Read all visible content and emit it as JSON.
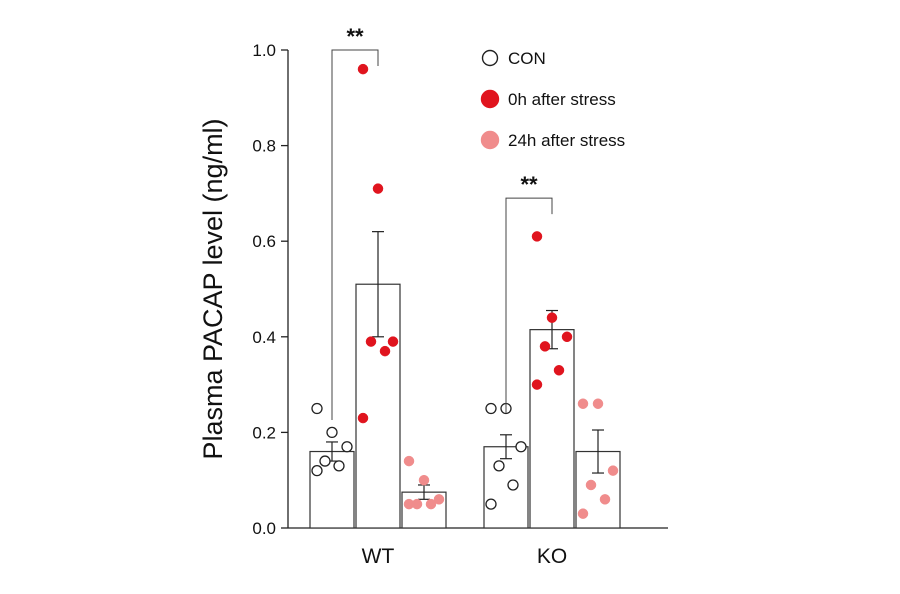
{
  "chart_data": {
    "type": "bar",
    "title": "",
    "xlabel": "",
    "ylabel": "Plasma PACAP level (ng/ml)",
    "ylim": [
      0,
      1.0
    ],
    "yticks": [
      "0.0",
      "0.2",
      "0.4",
      "0.6",
      "0.8",
      "1.0"
    ],
    "categories": [
      "WT",
      "KO"
    ],
    "series": [
      {
        "name": "CON",
        "color": "#ffffff",
        "stroke": "#222222",
        "values": [
          0.16,
          0.17
        ],
        "errors": [
          0.02,
          0.025
        ],
        "points": [
          [
            0.25,
            0.2,
            0.17,
            0.14,
            0.13,
            0.12
          ],
          [
            0.25,
            0.25,
            0.17,
            0.13,
            0.09,
            0.05
          ]
        ]
      },
      {
        "name": "0h after stress",
        "color": "#e0141e",
        "values": [
          0.51,
          0.415
        ],
        "errors": [
          0.11,
          0.04
        ],
        "points": [
          [
            0.96,
            0.71,
            0.39,
            0.39,
            0.37,
            0.23
          ],
          [
            0.61,
            0.44,
            0.4,
            0.38,
            0.33,
            0.3
          ]
        ]
      },
      {
        "name": "24h after stress",
        "color": "#f08c8c",
        "values": [
          0.075,
          0.16
        ],
        "errors": [
          0.015,
          0.045
        ],
        "points": [
          [
            0.14,
            0.1,
            0.06,
            0.05,
            0.05,
            0.05
          ],
          [
            0.26,
            0.26,
            0.12,
            0.09,
            0.06,
            0.03
          ]
        ]
      }
    ],
    "significance": [
      {
        "category": "WT",
        "from": "CON",
        "to": "0h after stress",
        "label": "**",
        "level": 1.0
      },
      {
        "category": "KO",
        "from": "CON",
        "to": "0h after stress",
        "label": "**",
        "level": 0.69
      }
    ],
    "legend_position": "top-right"
  }
}
